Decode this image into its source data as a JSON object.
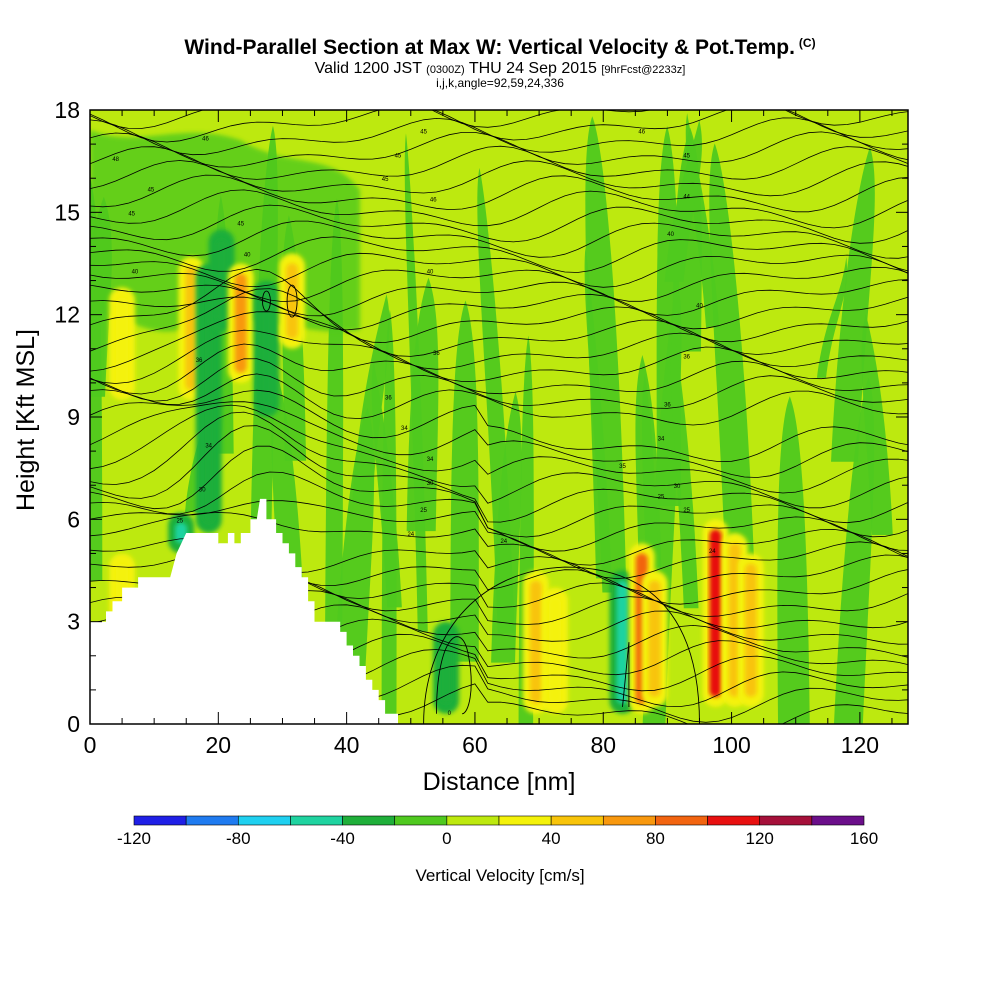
{
  "title": {
    "main": "Wind-Parallel Section at Max W: Vertical Velocity & Pot.Temp.",
    "mark": "(C)",
    "valid_a": "Valid 1200 JST",
    "valid_b": "(0300Z)",
    "valid_c": "THU 24 Sep 2015",
    "valid_d": "[9hrFcst@2233z]",
    "indices": "i,j,k,angle=92,59,24,336"
  },
  "chart_data": {
    "type": "heatmap",
    "xlabel": "Distance [nm]",
    "ylabel": "Height [Kft MSL]",
    "xlim": [
      0,
      127.5
    ],
    "ylim": [
      0,
      18
    ],
    "xticks": [
      0,
      20,
      40,
      60,
      80,
      100,
      120
    ],
    "yticks": [
      0,
      3,
      6,
      9,
      12,
      15,
      18
    ],
    "grid": false,
    "terrain_top_kft": [
      [
        0,
        3.0
      ],
      [
        2.5,
        3.0
      ],
      [
        2.5,
        3.3
      ],
      [
        3.5,
        3.3
      ],
      [
        3.5,
        3.6
      ],
      [
        5.0,
        3.6
      ],
      [
        5.0,
        4.0
      ],
      [
        7.5,
        4.0
      ],
      [
        7.5,
        4.3
      ],
      [
        12.5,
        4.3
      ],
      [
        13.5,
        5.0
      ],
      [
        15.0,
        5.6
      ],
      [
        20.0,
        5.6
      ],
      [
        20.0,
        5.3
      ],
      [
        21.5,
        5.3
      ],
      [
        21.5,
        5.6
      ],
      [
        22.5,
        5.6
      ],
      [
        22.5,
        5.3
      ],
      [
        23.5,
        5.3
      ],
      [
        23.5,
        5.6
      ],
      [
        25.0,
        5.6
      ],
      [
        25.0,
        6.0
      ],
      [
        26.0,
        6.0
      ],
      [
        26.5,
        6.6
      ],
      [
        27.5,
        6.6
      ],
      [
        27.5,
        6.0
      ],
      [
        29.0,
        6.0
      ],
      [
        29.0,
        5.6
      ],
      [
        30.0,
        5.6
      ],
      [
        30.0,
        5.3
      ],
      [
        31.0,
        5.3
      ],
      [
        31.0,
        5.0
      ],
      [
        32.0,
        5.0
      ],
      [
        32.0,
        4.6
      ],
      [
        33.0,
        4.6
      ],
      [
        33.0,
        4.3
      ],
      [
        34.0,
        4.3
      ],
      [
        34.0,
        3.6
      ],
      [
        35.0,
        3.6
      ],
      [
        35.0,
        3.0
      ],
      [
        39.0,
        3.0
      ],
      [
        39.0,
        2.7
      ],
      [
        40.0,
        2.7
      ],
      [
        40.0,
        2.3
      ],
      [
        41.0,
        2.3
      ],
      [
        41.0,
        2.0
      ],
      [
        42.0,
        2.0
      ],
      [
        42.0,
        1.7
      ],
      [
        43.0,
        1.7
      ],
      [
        43.0,
        1.3
      ],
      [
        44.0,
        1.3
      ],
      [
        44.0,
        1.0
      ],
      [
        45.0,
        1.0
      ],
      [
        45.0,
        0.7
      ],
      [
        46.0,
        0.7
      ],
      [
        46.0,
        0.3
      ],
      [
        48.0,
        0.3
      ],
      [
        48.0,
        0.0
      ],
      [
        50.0,
        0.0
      ]
    ],
    "velocity_anomalies": [
      {
        "x": 5.0,
        "ymin": 9.5,
        "ymax": 12.8,
        "w": 35
      },
      {
        "x": 5.0,
        "ymin": 3.0,
        "ymax": 5.0,
        "w": 30
      },
      {
        "x": 15.8,
        "ymin": 9.5,
        "ymax": 13.7,
        "w": 45
      },
      {
        "x": 18.5,
        "ymin": 5.6,
        "ymax": 13.5,
        "w": -35
      },
      {
        "x": 20.5,
        "ymin": 11.5,
        "ymax": 14.5,
        "w": -40
      },
      {
        "x": 23.5,
        "ymin": 10.0,
        "ymax": 13.5,
        "w": 65
      },
      {
        "x": 27.5,
        "ymin": 9.0,
        "ymax": 13.0,
        "w": -30
      },
      {
        "x": 31.5,
        "ymin": 11.0,
        "ymax": 13.8,
        "w": 45
      },
      {
        "x": 14.2,
        "ymin": 5.0,
        "ymax": 6.2,
        "w": -60
      },
      {
        "x": 55.5,
        "ymin": 0.3,
        "ymax": 3.0,
        "w": -25
      },
      {
        "x": 69.5,
        "ymin": 0.3,
        "ymax": 4.5,
        "w": 40
      },
      {
        "x": 72.5,
        "ymin": 0.3,
        "ymax": 4.0,
        "w": 30
      },
      {
        "x": 83.0,
        "ymin": 0.3,
        "ymax": 4.5,
        "w": -45
      },
      {
        "x": 86.0,
        "ymin": 0.3,
        "ymax": 5.3,
        "w": 80
      },
      {
        "x": 88.0,
        "ymin": 0.5,
        "ymax": 4.5,
        "w": 45
      },
      {
        "x": 97.5,
        "ymin": 0.5,
        "ymax": 6.0,
        "w": 110
      },
      {
        "x": 100.5,
        "ymin": 0.5,
        "ymax": 5.6,
        "w": 45
      },
      {
        "x": 103.0,
        "ymin": 0.5,
        "ymax": 5.0,
        "w": 40
      }
    ],
    "isentrope_labels": [
      {
        "x": 18,
        "y": 17.2,
        "text": "46"
      },
      {
        "x": 52,
        "y": 17.4,
        "text": "45"
      },
      {
        "x": 86,
        "y": 17.4,
        "text": "46"
      },
      {
        "x": 4,
        "y": 16.6,
        "text": "48"
      },
      {
        "x": 48,
        "y": 16.7,
        "text": "45"
      },
      {
        "x": 93,
        "y": 16.7,
        "text": "45"
      },
      {
        "x": 9.5,
        "y": 15.7,
        "text": "45"
      },
      {
        "x": 46,
        "y": 16.0,
        "text": "45"
      },
      {
        "x": 93,
        "y": 15.5,
        "text": "44"
      },
      {
        "x": 6.5,
        "y": 15.0,
        "text": "45"
      },
      {
        "x": 53.5,
        "y": 15.4,
        "text": "46"
      },
      {
        "x": 23.5,
        "y": 14.7,
        "text": "45"
      },
      {
        "x": 90.5,
        "y": 14.4,
        "text": "40"
      },
      {
        "x": 24.5,
        "y": 13.8,
        "text": "40"
      },
      {
        "x": 7,
        "y": 13.3,
        "text": "40"
      },
      {
        "x": 53,
        "y": 13.3,
        "text": "40"
      },
      {
        "x": 95,
        "y": 12.3,
        "text": "40"
      },
      {
        "x": 54,
        "y": 10.9,
        "text": "36"
      },
      {
        "x": 17,
        "y": 10.7,
        "text": "36"
      },
      {
        "x": 93,
        "y": 10.8,
        "text": "36"
      },
      {
        "x": 46.5,
        "y": 9.6,
        "text": "36"
      },
      {
        "x": 90,
        "y": 9.4,
        "text": "36"
      },
      {
        "x": 49,
        "y": 8.7,
        "text": "34"
      },
      {
        "x": 89,
        "y": 8.4,
        "text": "34"
      },
      {
        "x": 18.5,
        "y": 8.2,
        "text": "34"
      },
      {
        "x": 53,
        "y": 7.8,
        "text": "34"
      },
      {
        "x": 83,
        "y": 7.6,
        "text": "35"
      },
      {
        "x": 53,
        "y": 7.1,
        "text": "30"
      },
      {
        "x": 91.5,
        "y": 7.0,
        "text": "30"
      },
      {
        "x": 17.5,
        "y": 6.9,
        "text": "30"
      },
      {
        "x": 89,
        "y": 6.7,
        "text": "25"
      },
      {
        "x": 52,
        "y": 6.3,
        "text": "25"
      },
      {
        "x": 93,
        "y": 6.3,
        "text": "25"
      },
      {
        "x": 14,
        "y": 6.0,
        "text": "25"
      },
      {
        "x": 50,
        "y": 5.6,
        "text": "24"
      },
      {
        "x": 64.5,
        "y": 5.4,
        "text": "24"
      },
      {
        "x": 97,
        "y": 5.1,
        "text": "24"
      },
      {
        "x": 56,
        "y": 0.35,
        "text": "0"
      }
    ],
    "colorbar": {
      "label": "Vertical Velocity [cm/s]",
      "ticks": [
        "-120",
        "-80",
        "-40",
        "0",
        "40",
        "80",
        "120",
        "160"
      ],
      "bins": [
        -120,
        -100,
        -80,
        -60,
        -40,
        -20,
        0,
        20,
        40,
        60,
        80,
        100,
        120,
        140,
        160
      ],
      "colors": [
        "#1f1fe6",
        "#1f7bf0",
        "#1fd0f0",
        "#1fd3a0",
        "#1faf3a",
        "#4fc91f",
        "#bde90f",
        "#f4f20a",
        "#f8c40a",
        "#f8980e",
        "#f26410",
        "#e81010",
        "#a5103a",
        "#6b0f8a"
      ]
    }
  }
}
